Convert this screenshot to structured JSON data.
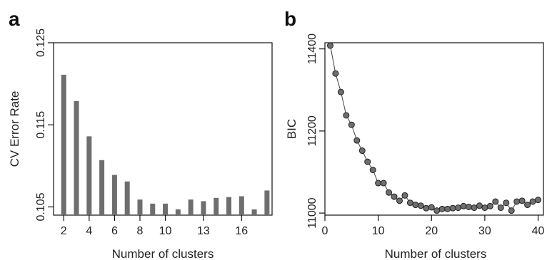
{
  "panels": {
    "a": {
      "letter": "a"
    },
    "b": {
      "letter": "b"
    }
  },
  "chart_data": [
    {
      "panel": "a",
      "type": "bar",
      "xlabel": "Number of clusters",
      "ylabel": "CV Error Rate",
      "x": [
        2,
        3,
        4,
        5,
        6,
        7,
        8,
        9,
        10,
        11,
        12,
        13,
        14,
        15,
        16,
        17,
        18
      ],
      "values": [
        0.1211,
        0.1179,
        0.1136,
        0.1107,
        0.1089,
        0.1081,
        0.1059,
        0.1054,
        0.1054,
        0.1047,
        0.1059,
        0.1057,
        0.1061,
        0.1062,
        0.1063,
        0.1047,
        0.107
      ],
      "xticks": [
        2,
        4,
        6,
        8,
        10,
        13,
        16
      ],
      "xtick_labels": [
        "2",
        "4",
        "6",
        "8",
        "10",
        "13",
        "16"
      ],
      "yticks": [
        0.105,
        0.115,
        0.125
      ],
      "ytick_labels": [
        "0.105",
        "0.115",
        "0.125"
      ],
      "ylim": [
        0.104,
        0.125
      ],
      "xlim": [
        1.2,
        18.4
      ],
      "grid": false,
      "color": "#6e6e6e"
    },
    {
      "panel": "b",
      "type": "line",
      "markers": true,
      "xlabel": "Number of clusters",
      "ylabel": "BIC",
      "x": [
        1,
        2,
        3,
        4,
        5,
        6,
        7,
        8,
        9,
        10,
        11,
        12,
        13,
        14,
        15,
        16,
        17,
        18,
        19,
        20,
        21,
        22,
        23,
        24,
        25,
        26,
        27,
        28,
        29,
        30,
        31,
        32,
        33,
        34,
        35,
        36,
        37,
        38,
        39,
        40
      ],
      "values": [
        11408,
        11340,
        11295,
        11238,
        11215,
        11177,
        11152,
        11125,
        11105,
        11073,
        11073,
        11050,
        11040,
        11030,
        11043,
        11025,
        11020,
        11018,
        11012,
        11014,
        11006,
        11010,
        11010,
        11012,
        11013,
        11017,
        11015,
        11013,
        11018,
        11013,
        11017,
        11028,
        11013,
        11025,
        11006,
        11028,
        11030,
        11020,
        11028,
        11032
      ],
      "xticks": [
        0,
        10,
        20,
        30,
        40
      ],
      "xtick_labels": [
        "0",
        "10",
        "20",
        "30",
        "40"
      ],
      "yticks": [
        11000,
        11200,
        11400
      ],
      "ytick_labels": [
        "11000",
        "11200",
        "11400"
      ],
      "ylim": [
        10995,
        11415
      ],
      "xlim": [
        0,
        41
      ],
      "grid": false,
      "color": "#6e6e6e"
    }
  ]
}
